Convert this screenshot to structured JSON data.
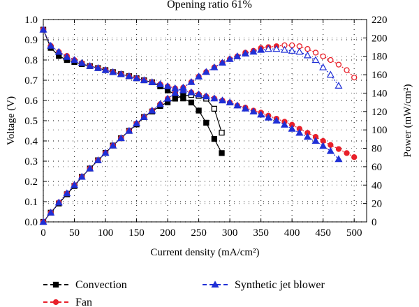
{
  "chart_data": {
    "type": "line",
    "title": "Opening ratio 61%",
    "xlabel": "Current density (mA/cm²)",
    "ylabel_left": "Voltage (V)",
    "ylabel_right": "Power (mW/cm²)",
    "xlim": [
      0,
      520
    ],
    "ylim_left": [
      0,
      1.0
    ],
    "ylim_right": [
      0,
      220
    ],
    "x_ticks": [
      0,
      50,
      100,
      150,
      200,
      250,
      300,
      350,
      400,
      450,
      500
    ],
    "y_left_ticks": [
      0.0,
      0.1,
      0.2,
      0.3,
      0.4,
      0.5,
      0.6,
      0.7,
      0.8,
      0.9,
      1.0
    ],
    "y_right_ticks": [
      0,
      20,
      40,
      60,
      80,
      100,
      120,
      140,
      160,
      180,
      200,
      220
    ],
    "grid": "dotted",
    "legend_position": "bottom",
    "series": [
      {
        "name": "Convection",
        "color": "#000000",
        "marker": "square",
        "voltage": {
          "x": [
            0,
            12,
            25,
            38,
            50,
            62,
            75,
            88,
            100,
            112,
            125,
            138,
            150,
            162,
            175,
            188,
            200,
            212,
            225,
            238,
            250,
            262,
            275,
            287
          ],
          "y": [
            0.95,
            0.86,
            0.82,
            0.8,
            0.79,
            0.78,
            0.77,
            0.76,
            0.75,
            0.74,
            0.73,
            0.72,
            0.71,
            0.7,
            0.69,
            0.67,
            0.65,
            0.63,
            0.61,
            0.59,
            0.55,
            0.49,
            0.41,
            0.34
          ]
        },
        "power": {
          "x": [
            0,
            12,
            25,
            38,
            50,
            62,
            75,
            88,
            100,
            112,
            125,
            138,
            150,
            162,
            175,
            188,
            200,
            212,
            225,
            238,
            250,
            262,
            275,
            287
          ],
          "y": [
            0,
            10,
            20,
            30,
            39,
            49,
            58,
            67,
            75,
            83,
            91,
            99,
            106,
            114,
            120,
            126,
            130,
            134,
            137,
            138,
            137,
            134,
            123,
            97
          ]
        }
      },
      {
        "name": "Fan",
        "color": "#e8202a",
        "marker": "circle",
        "voltage": {
          "x": [
            0,
            12,
            25,
            38,
            50,
            62,
            75,
            88,
            100,
            112,
            125,
            138,
            150,
            162,
            175,
            188,
            200,
            212,
            225,
            238,
            250,
            262,
            275,
            288,
            300,
            312,
            325,
            338,
            350,
            362,
            375,
            388,
            400,
            412,
            425,
            438,
            450,
            462,
            475,
            488,
            500
          ],
          "y": [
            0.95,
            0.87,
            0.84,
            0.82,
            0.8,
            0.785,
            0.77,
            0.76,
            0.75,
            0.74,
            0.73,
            0.72,
            0.71,
            0.7,
            0.69,
            0.68,
            0.67,
            0.66,
            0.65,
            0.64,
            0.63,
            0.62,
            0.61,
            0.6,
            0.59,
            0.575,
            0.565,
            0.55,
            0.54,
            0.525,
            0.51,
            0.495,
            0.48,
            0.46,
            0.44,
            0.42,
            0.4,
            0.38,
            0.36,
            0.34,
            0.32
          ]
        },
        "power": {
          "x": [
            0,
            12,
            25,
            38,
            50,
            62,
            75,
            88,
            100,
            112,
            125,
            138,
            150,
            162,
            175,
            188,
            200,
            212,
            225,
            238,
            250,
            262,
            275,
            288,
            300,
            312,
            325,
            338,
            350,
            362,
            375,
            388,
            400,
            412,
            425,
            438,
            450,
            462,
            475,
            488,
            500
          ],
          "y": [
            0,
            10,
            21,
            31,
            40,
            49,
            58,
            67,
            75,
            83,
            91,
            99,
            107,
            114,
            121,
            128,
            134,
            140,
            146,
            152,
            158,
            163,
            168,
            173,
            177,
            180,
            184,
            186,
            189,
            190,
            191,
            192,
            192,
            191,
            188,
            184,
            180,
            176,
            171,
            165,
            157
          ]
        }
      },
      {
        "name": "Synthetic jet blower",
        "color": "#1f2fd6",
        "marker": "triangle",
        "voltage": {
          "x": [
            0,
            12,
            25,
            38,
            50,
            62,
            75,
            88,
            100,
            112,
            125,
            138,
            150,
            162,
            175,
            188,
            200,
            212,
            225,
            238,
            250,
            262,
            275,
            288,
            300,
            312,
            325,
            338,
            350,
            362,
            375,
            388,
            400,
            412,
            425,
            438,
            450,
            462,
            475
          ],
          "y": [
            0.95,
            0.87,
            0.84,
            0.815,
            0.8,
            0.785,
            0.77,
            0.76,
            0.75,
            0.74,
            0.73,
            0.72,
            0.71,
            0.7,
            0.69,
            0.68,
            0.67,
            0.66,
            0.65,
            0.64,
            0.63,
            0.62,
            0.61,
            0.6,
            0.59,
            0.575,
            0.56,
            0.545,
            0.53,
            0.515,
            0.5,
            0.48,
            0.46,
            0.44,
            0.42,
            0.4,
            0.375,
            0.35,
            0.31
          ]
        },
        "power": {
          "x": [
            0,
            12,
            25,
            38,
            50,
            62,
            75,
            88,
            100,
            112,
            125,
            138,
            150,
            162,
            175,
            188,
            200,
            212,
            225,
            238,
            250,
            262,
            275,
            288,
            300,
            312,
            325,
            338,
            350,
            362,
            375,
            388,
            400,
            412,
            425,
            438,
            450,
            462,
            475
          ],
          "y": [
            0,
            10,
            21,
            31,
            40,
            49,
            58,
            67,
            75,
            83,
            91,
            99,
            107,
            114,
            121,
            128,
            134,
            140,
            146,
            152,
            158,
            163,
            168,
            173,
            177,
            180,
            183,
            185,
            187,
            188,
            188,
            187,
            186,
            185,
            181,
            176,
            168,
            160,
            148
          ]
        }
      }
    ],
    "legend": [
      {
        "label": "Convection",
        "series": 0
      },
      {
        "label": "Fan",
        "series": 1
      },
      {
        "label": "Synthetic jet blower",
        "series": 2
      }
    ]
  }
}
